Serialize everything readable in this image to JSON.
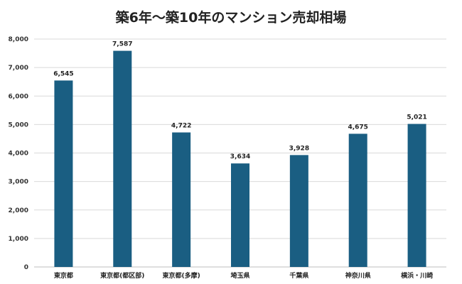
{
  "chart_data": {
    "type": "bar",
    "title": "築6年〜築10年のマンション売却相場",
    "categories": [
      "東京都",
      "東京都(都区部)",
      "東京都(多摩)",
      "埼玉県",
      "千葉県",
      "神奈川県",
      "横浜・川崎"
    ],
    "values": [
      6545,
      7587,
      4722,
      3634,
      3928,
      4675,
      5021
    ],
    "value_labels": [
      "6,545",
      "7,587",
      "4,722",
      "3,634",
      "3,928",
      "4,675",
      "5,021"
    ],
    "ylim": [
      0,
      8000
    ],
    "yticks": [
      0,
      1000,
      2000,
      3000,
      4000,
      5000,
      6000,
      7000,
      8000
    ],
    "ytick_labels": [
      "0",
      "1,000",
      "2,000",
      "3,000",
      "4,000",
      "5,000",
      "6,000",
      "7,000",
      "8,000"
    ],
    "grid": true,
    "legend": "none",
    "bar_color": "#1a5e82"
  }
}
